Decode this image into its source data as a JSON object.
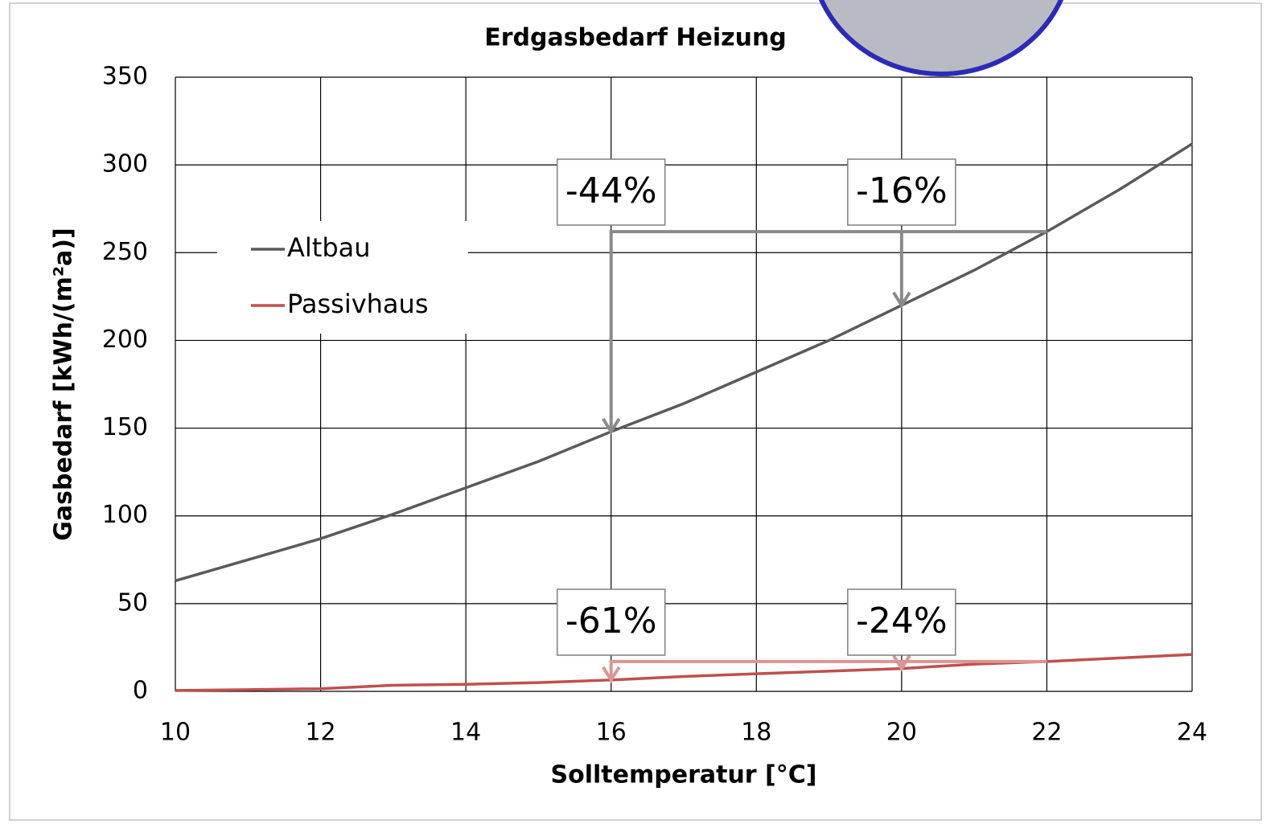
{
  "chart_data": {
    "type": "line",
    "title": "Erdgasbedarf Heizung",
    "x_label": "Solltemperatur [°C]",
    "y_label": "Gasbedarf [kWh/(m²a)]",
    "x": [
      10,
      11,
      12,
      13,
      14,
      15,
      16,
      17,
      18,
      19,
      20,
      21,
      22,
      23,
      24
    ],
    "series": [
      {
        "name": "Altbau",
        "color": "#5a5a5a",
        "values": [
          63,
          75,
          87,
          101,
          116,
          131,
          148,
          164,
          182,
          200,
          220,
          240,
          262,
          286,
          312
        ]
      },
      {
        "name": "Passivhaus",
        "color": "#c0504d",
        "values": [
          0.5,
          1,
          1.5,
          3.5,
          4,
          5,
          6.5,
          8.5,
          10,
          11.5,
          13,
          15.5,
          17,
          19,
          21
        ]
      }
    ],
    "xlim": [
      10,
      24
    ],
    "xticks": [
      10,
      12,
      14,
      16,
      18,
      20,
      22,
      24
    ],
    "ylim": [
      0,
      350
    ],
    "yticks": [
      0,
      50,
      100,
      150,
      200,
      250,
      300,
      350
    ],
    "grid": true,
    "annotations": [
      "-44%",
      "-16%",
      "-61%",
      "-24%"
    ]
  }
}
